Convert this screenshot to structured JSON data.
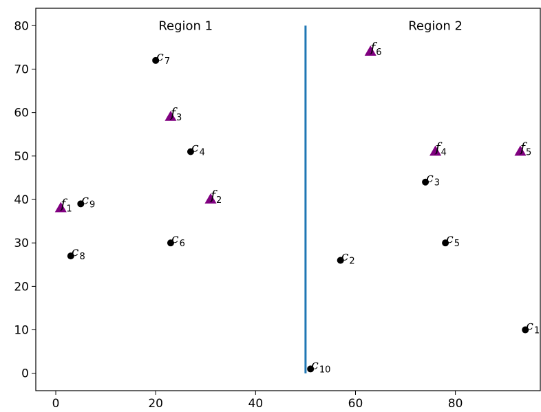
{
  "chart_data": {
    "type": "scatter",
    "xlim": [
      -4,
      97
    ],
    "ylim": [
      -4,
      84
    ],
    "xticks": [
      0,
      20,
      40,
      60,
      80
    ],
    "yticks": [
      0,
      10,
      20,
      30,
      40,
      50,
      60,
      70,
      80
    ],
    "grid": false,
    "divider": {
      "x": 50,
      "y_range": [
        0,
        80
      ],
      "color": "#1f77b4"
    },
    "regions": [
      {
        "label": "Region 1",
        "x": 26,
        "y": 79
      },
      {
        "label": "Region 2",
        "x": 76,
        "y": 79
      }
    ],
    "facility_color": "#800080",
    "client_color": "#000000",
    "facilities": [
      {
        "letter": "f",
        "sub": "1",
        "x": 1,
        "y": 38
      },
      {
        "letter": "f",
        "sub": "2",
        "x": 31,
        "y": 40
      },
      {
        "letter": "f",
        "sub": "3",
        "x": 23,
        "y": 59
      },
      {
        "letter": "f",
        "sub": "4",
        "x": 76,
        "y": 51
      },
      {
        "letter": "f",
        "sub": "5",
        "x": 93,
        "y": 51
      },
      {
        "letter": "f",
        "sub": "6",
        "x": 63,
        "y": 74
      }
    ],
    "clients": [
      {
        "letter": "c",
        "sub": "1",
        "x": 94,
        "y": 10
      },
      {
        "letter": "c",
        "sub": "2",
        "x": 57,
        "y": 26
      },
      {
        "letter": "c",
        "sub": "3",
        "x": 74,
        "y": 44
      },
      {
        "letter": "c",
        "sub": "4",
        "x": 27,
        "y": 51
      },
      {
        "letter": "c",
        "sub": "5",
        "x": 78,
        "y": 30
      },
      {
        "letter": "c",
        "sub": "6",
        "x": 23,
        "y": 30
      },
      {
        "letter": "c",
        "sub": "7",
        "x": 20,
        "y": 72
      },
      {
        "letter": "c",
        "sub": "8",
        "x": 3,
        "y": 27
      },
      {
        "letter": "c",
        "sub": "9",
        "x": 5,
        "y": 39
      },
      {
        "letter": "c",
        "sub": "10",
        "x": 51,
        "y": 1
      }
    ]
  }
}
